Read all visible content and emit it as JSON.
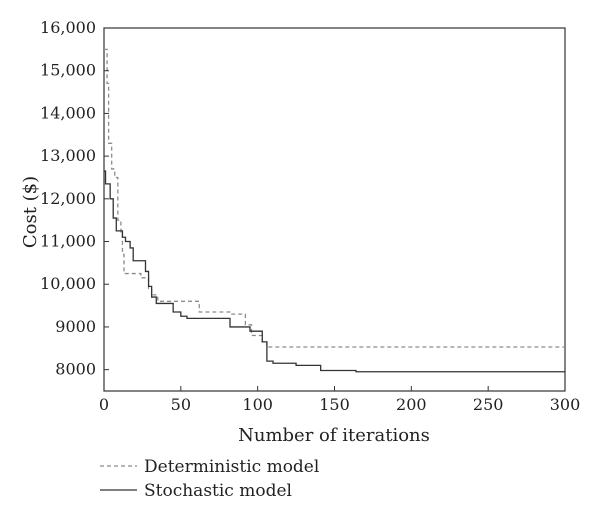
{
  "chart_data": {
    "type": "line",
    "title": "",
    "xlabel": "Number of iterations",
    "ylabel": "Cost ($)",
    "xlim": [
      0,
      300
    ],
    "ylim": [
      7500,
      16000
    ],
    "xticks": [
      0,
      50,
      100,
      150,
      200,
      250,
      300
    ],
    "xtick_labels": [
      "0",
      "50",
      "100",
      "150",
      "200",
      "250",
      "300"
    ],
    "yticks": [
      8000,
      9000,
      10000,
      11000,
      12000,
      13000,
      14000,
      15000,
      16000
    ],
    "ytick_labels": [
      "8000",
      "9000",
      "10,000",
      "11,000",
      "12,000",
      "13,000",
      "14,000",
      "15,000",
      "16,000"
    ],
    "grid": false,
    "legend_position": "bottom-left, below plot",
    "series": [
      {
        "name": "Deterministic model",
        "style": "dashed",
        "color": "#8c8c8c",
        "points": [
          [
            0,
            15500
          ],
          [
            2,
            15500
          ],
          [
            2,
            14700
          ],
          [
            3,
            14700
          ],
          [
            3,
            13300
          ],
          [
            5,
            13300
          ],
          [
            5,
            12700
          ],
          [
            7,
            12700
          ],
          [
            7,
            12500
          ],
          [
            9,
            12500
          ],
          [
            9,
            11500
          ],
          [
            11,
            11500
          ],
          [
            11,
            11200
          ],
          [
            12,
            11200
          ],
          [
            12,
            10700
          ],
          [
            13,
            10700
          ],
          [
            13,
            10250
          ],
          [
            24,
            10250
          ],
          [
            24,
            10150
          ],
          [
            29,
            10150
          ],
          [
            29,
            9900
          ],
          [
            31,
            9900
          ],
          [
            31,
            9750
          ],
          [
            35,
            9750
          ],
          [
            35,
            9600
          ],
          [
            62,
            9600
          ],
          [
            62,
            9350
          ],
          [
            82,
            9350
          ],
          [
            82,
            9300
          ],
          [
            92,
            9300
          ],
          [
            92,
            9050
          ],
          [
            96,
            9050
          ],
          [
            96,
            8800
          ],
          [
            103,
            8800
          ],
          [
            103,
            8650
          ],
          [
            106,
            8650
          ],
          [
            106,
            8530
          ],
          [
            300,
            8530
          ]
        ]
      },
      {
        "name": "Stochastic model",
        "style": "solid",
        "color": "#333333",
        "points": [
          [
            0,
            12650
          ],
          [
            1,
            12650
          ],
          [
            1,
            12350
          ],
          [
            4,
            12350
          ],
          [
            4,
            12000
          ],
          [
            6,
            12000
          ],
          [
            6,
            11550
          ],
          [
            8,
            11550
          ],
          [
            8,
            11250
          ],
          [
            12,
            11250
          ],
          [
            12,
            11100
          ],
          [
            14,
            11100
          ],
          [
            14,
            11000
          ],
          [
            17,
            11000
          ],
          [
            17,
            10850
          ],
          [
            19,
            10850
          ],
          [
            19,
            10550
          ],
          [
            27,
            10550
          ],
          [
            27,
            10300
          ],
          [
            29,
            10300
          ],
          [
            29,
            9950
          ],
          [
            31,
            9950
          ],
          [
            31,
            9700
          ],
          [
            34,
            9700
          ],
          [
            34,
            9550
          ],
          [
            45,
            9550
          ],
          [
            45,
            9350
          ],
          [
            50,
            9350
          ],
          [
            50,
            9250
          ],
          [
            54,
            9250
          ],
          [
            54,
            9200
          ],
          [
            82,
            9200
          ],
          [
            82,
            9000
          ],
          [
            95,
            9000
          ],
          [
            95,
            8900
          ],
          [
            103,
            8900
          ],
          [
            103,
            8650
          ],
          [
            106,
            8650
          ],
          [
            106,
            8200
          ],
          [
            110,
            8200
          ],
          [
            110,
            8150
          ],
          [
            125,
            8150
          ],
          [
            125,
            8100
          ],
          [
            141,
            8100
          ],
          [
            141,
            7980
          ],
          [
            164,
            7980
          ],
          [
            164,
            7950
          ],
          [
            300,
            7950
          ]
        ]
      }
    ]
  }
}
